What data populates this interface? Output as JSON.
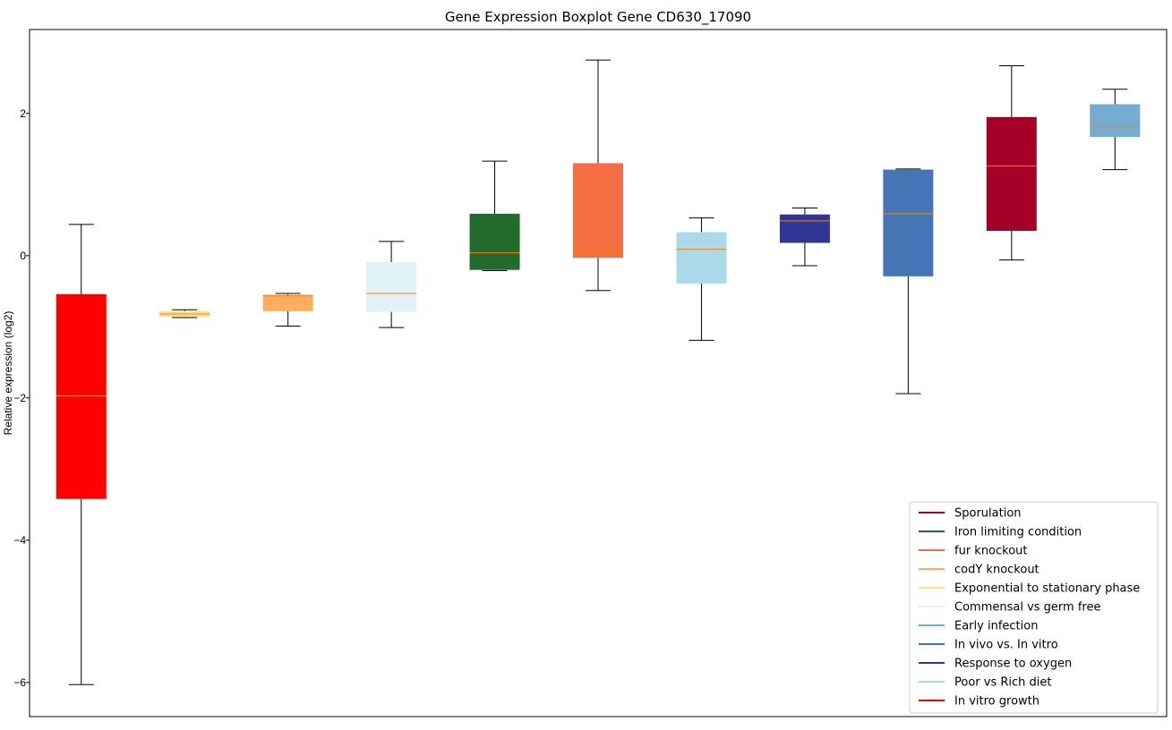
{
  "chart_data": {
    "type": "boxplot",
    "title": "Gene Expression Boxplot Gene CD630_17090",
    "xlabel": "",
    "ylabel": "Relative expression (log2)",
    "ylim": [
      -6.48,
      3.18
    ],
    "yticks": [
      2,
      0,
      -2,
      -4,
      -6
    ],
    "ytick_labels": [
      "2",
      "0",
      "−2",
      "−4",
      "−6"
    ],
    "grid": false,
    "legend_position": "lower-right",
    "median_color": "#ff7f0e",
    "series": [
      {
        "name": "In vitro growth",
        "color": "#ff0000",
        "whislo": -6.03,
        "q1": -3.42,
        "med": -1.97,
        "q3": -0.54,
        "whishi": 0.44
      },
      {
        "name": "Exponential to stationary phase",
        "color": "#fee090",
        "whislo": -0.87,
        "q1": -0.86,
        "med": -0.82,
        "q3": -0.78,
        "whishi": -0.76
      },
      {
        "name": "codY knockout",
        "color": "#fdae61",
        "whislo": -0.99,
        "q1": -0.78,
        "med": -0.56,
        "q3": -0.55,
        "whishi": -0.53
      },
      {
        "name": "Commensal vs germ free",
        "color": "#e0f3f8",
        "whislo": -1.01,
        "q1": -0.79,
        "med": -0.53,
        "q3": -0.09,
        "whishi": 0.2
      },
      {
        "name": "Iron limiting condition",
        "color": "#236b2c",
        "whislo": -0.21,
        "q1": -0.2,
        "med": 0.04,
        "q3": 0.59,
        "whishi": 1.33
      },
      {
        "name": "fur knockout",
        "color": "#f46d43",
        "whislo": -0.49,
        "q1": -0.03,
        "med": 0.07,
        "q3": 1.3,
        "whishi": 2.75
      },
      {
        "name": "Poor vs Rich diet",
        "color": "#abd9e9",
        "whislo": -1.19,
        "q1": -0.39,
        "med": 0.09,
        "q3": 0.33,
        "whishi": 0.53
      },
      {
        "name": "Response to oxygen",
        "color": "#313695",
        "whislo": -0.14,
        "q1": 0.18,
        "med": 0.49,
        "q3": 0.58,
        "whishi": 0.67
      },
      {
        "name": "In vivo vs. In vitro",
        "color": "#4575b4",
        "whislo": -1.94,
        "q1": -0.29,
        "med": 0.59,
        "q3": 1.21,
        "whishi": 1.22
      },
      {
        "name": "Sporulation",
        "color": "#a50026",
        "whislo": -0.06,
        "q1": 0.35,
        "med": 1.26,
        "q3": 1.95,
        "whishi": 2.67
      },
      {
        "name": "Early infection",
        "color": "#74add1",
        "whislo": 1.21,
        "q1": 1.67,
        "med": 1.81,
        "q3": 2.13,
        "whishi": 2.34
      }
    ],
    "legend": [
      {
        "label": "Sporulation",
        "color": "#a50026"
      },
      {
        "label": "Iron limiting condition",
        "color": "#236b2c"
      },
      {
        "label": "fur knockout",
        "color": "#f46d43"
      },
      {
        "label": "codY knockout",
        "color": "#fdae61"
      },
      {
        "label": "Exponential to stationary phase",
        "color": "#fee090"
      },
      {
        "label": "Commensal vs germ free",
        "color": "#e0f3f8"
      },
      {
        "label": "Early infection",
        "color": "#74add1"
      },
      {
        "label": "In vivo vs. In vitro",
        "color": "#4575b4"
      },
      {
        "label": "Response to oxygen",
        "color": "#313695"
      },
      {
        "label": "Poor vs Rich diet",
        "color": "#abd9e9"
      },
      {
        "label": "In vitro growth",
        "color": "#ff0000"
      }
    ]
  }
}
